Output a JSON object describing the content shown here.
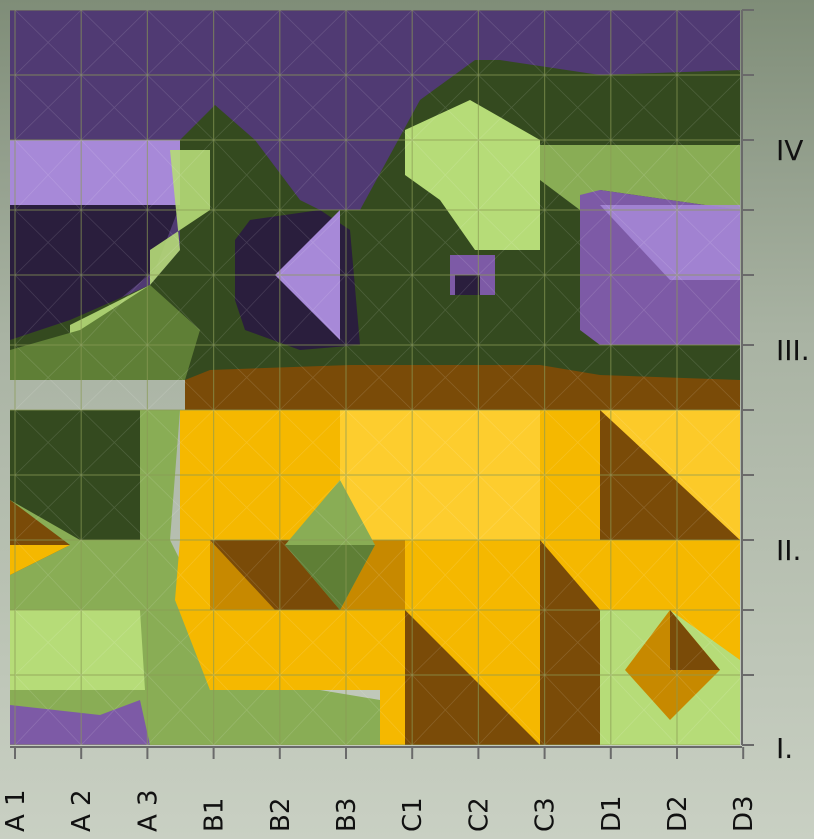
{
  "chart_data": {
    "type": "heatmap",
    "title": "",
    "xlabel": "",
    "ylabel": "",
    "x_categories": [
      "A 1",
      "A 2",
      "A 3",
      "B1",
      "B2",
      "B3",
      "C1",
      "C2",
      "C3",
      "D1",
      "D2",
      "D3"
    ],
    "y_tick_labels": [
      "I.",
      "II.",
      "III.",
      "IV"
    ],
    "grid": true,
    "colors": {
      "yellow_light": "#ffd23a",
      "yellow": "#f5b800",
      "orange_dark": "#c78900",
      "brown": "#7a4b08",
      "green_light": "#b6dc78",
      "green": "#89ad55",
      "green_mid": "#5f7f36",
      "green_dark": "#344a1f",
      "purple_light": "#a789d8",
      "purple": "#7d5aa6",
      "purple_dark": "#2a1e3d"
    }
  }
}
